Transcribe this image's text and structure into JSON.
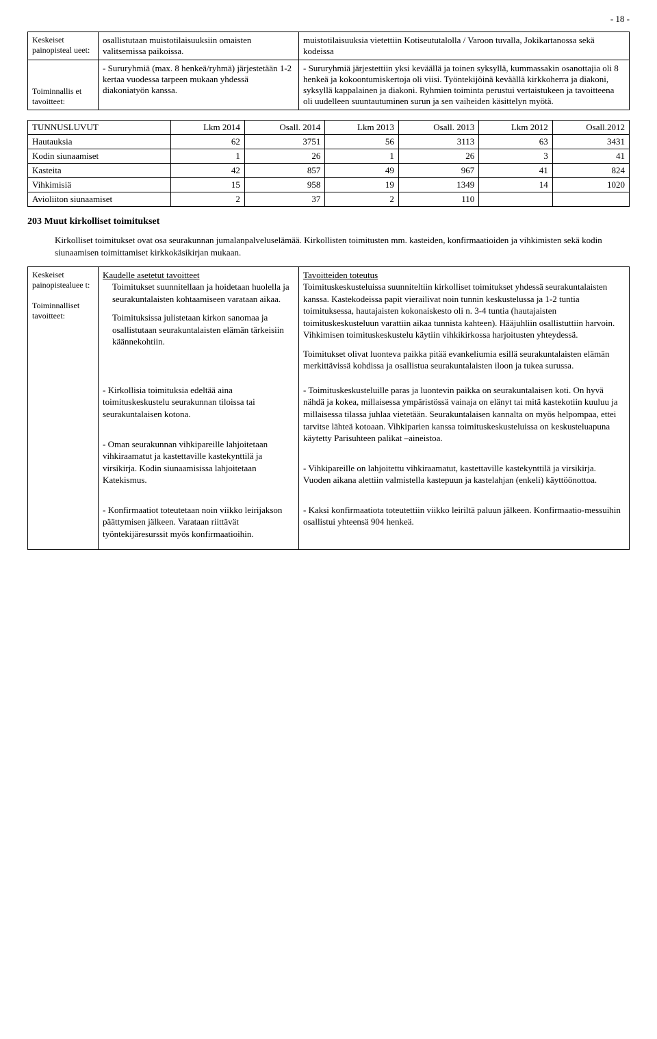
{
  "page_number": "- 18 -",
  "top_table": {
    "row1": {
      "label": "Keskeiset painopisteal ueet:",
      "left": "osallistutaan muistotilaisuuksiin omaisten valitsemissa paikoissa.",
      "right": "muistotilaisuuksia vietettiin Kotiseututalolla / Varoon tuvalla, Jokikartanossa sekä kodeissa"
    },
    "row2": {
      "label": "Toiminnallis et tavoitteet:",
      "left": "- Sururyhmiä (max. 8 henkeä/ryhmä) järjestetään 1-2 kertaa vuodessa tarpeen mukaan yhdessä diakoniatyön kanssa.",
      "right": "- Sururyhmiä järjestettiin yksi keväällä ja toinen syksyllä, kummassakin osanottajia oli 8 henkeä ja kokoontumiskertoja oli viisi. Työntekijöinä keväällä kirkkoherra ja diakoni, syksyllä kappalainen ja diakoni. Ryhmien toiminta perustui vertaistukeen ja tavoitteena oli uudelleen suuntautuminen surun ja sen vaiheiden käsittelyn myötä."
    }
  },
  "num_table": {
    "headers": [
      "TUNNUSLUVUT",
      "Lkm 2014",
      "Osall. 2014",
      "Lkm 2013",
      "Osall. 2013",
      "Lkm 2012",
      "Osall.2012"
    ],
    "rows": [
      [
        "Hautauksia",
        "62",
        "3751",
        "56",
        "3113",
        "63",
        "3431"
      ],
      [
        "Kodin siunaamiset",
        "1",
        "26",
        "1",
        "26",
        "3",
        "41"
      ],
      [
        "Kasteita",
        "42",
        "857",
        "49",
        "967",
        "41",
        "824"
      ],
      [
        "Vihkimisiä",
        "15",
        "958",
        "19",
        "1349",
        "14",
        "1020"
      ],
      [
        "Avioliiton siunaamiset",
        "2",
        "37",
        "2",
        "110",
        "",
        ""
      ]
    ]
  },
  "section": {
    "title": "203 Muut kirkolliset toimitukset",
    "intro": "Kirkolliset toimitukset ovat osa seurakunnan jumalanpalveluselämää. Kirkollisten toimitusten mm. kasteiden, konfirmaatioiden ja vihkimisten sekä kodin siunaamisen toimittamiset kirkkokäsikirjan mukaan."
  },
  "main_table": {
    "label1": "Keskeiset painopistealuee t:",
    "label2": "Toiminnalliset tavoitteet:",
    "header_left": "Kaudelle asetetut tavoitteet",
    "header_right": "Tavoitteiden toteutus",
    "r1_left_p1": "Toimitukset suunnitellaan ja hoidetaan huolella ja seurakuntalaisten kohtaamiseen varataan aikaa.",
    "r1_left_p2": "Toimituksissa julistetaan kirkon sanomaa ja osallistutaan seurakuntalaisten elämän tärkeisiin käännekohtiin.",
    "r1_right_p1": "Toimituskeskusteluissa suunniteltiin kirkolliset toimitukset yhdessä seurakuntalaisten kanssa. Kastekodeissa papit vierailivat noin tunnin keskustelussa ja 1-2 tuntia toimituksessa, hautajaisten kokonaiskesto oli n. 3-4 tuntia (hautajaisten toimituskeskusteluun varattiin aikaa tunnista kahteen). Hääjuhliin osallistuttiin harvoin. Vihkimisen toimituskeskustelu käytiin vihkikirkossa harjoitusten yhteydessä.",
    "r1_right_p2": "Toimitukset olivat luonteva paikka pitää evankeliumia esillä seurakuntalaisten elämän merkittävissä kohdissa ja osallistua seurakuntalaisten iloon ja tukea surussa.",
    "r2_left": "- Kirkollisia toimituksia edeltää aina toimituskeskustelu seurakunnan tiloissa tai seurakuntalaisen kotona.",
    "r2_right": "- Toimituskeskusteluille paras ja luontevin paikka on seurakuntalaisen koti. On hyvä nähdä ja kokea, millaisessa ympäristössä vainaja on elänyt tai mitä kastekotiin kuuluu ja millaisessa tilassa juhlaa vietetään. Seurakuntalaisen kannalta on myös helpompaa, ettei tarvitse lähteä kotoaan. Vihkiparien kanssa toimituskeskusteluissa on keskusteluapuna käytetty Parisuhteen palikat –aineistoa.",
    "r3_left": "- Oman seurakunnan vihkipareille lahjoitetaan vihkiraamatut ja kastettaville kastekynttilä ja virsikirja. Kodin siunaamisissa lahjoitetaan Katekismus.",
    "r3_right": "- Vihkipareille on lahjoitettu vihkiraamatut, kastettaville kastekynttilä ja virsikirja. Vuoden aikana alettiin valmistella kastepuun ja kastelahjan (enkeli) käyttöönottoa.",
    "r4_left": "- Konfirmaatiot toteutetaan noin viikko leirĳakson päättymisen jälkeen. Varataan riittävät työntekijäresurssit myös konfirmaatioihin.",
    "r4_right": "- Kaksi konfirmaatiota toteutettiin viikko leiriltä paluun jälkeen. Konfirmaatio-messuihin osallistui yhteensä 904 henkeä."
  }
}
